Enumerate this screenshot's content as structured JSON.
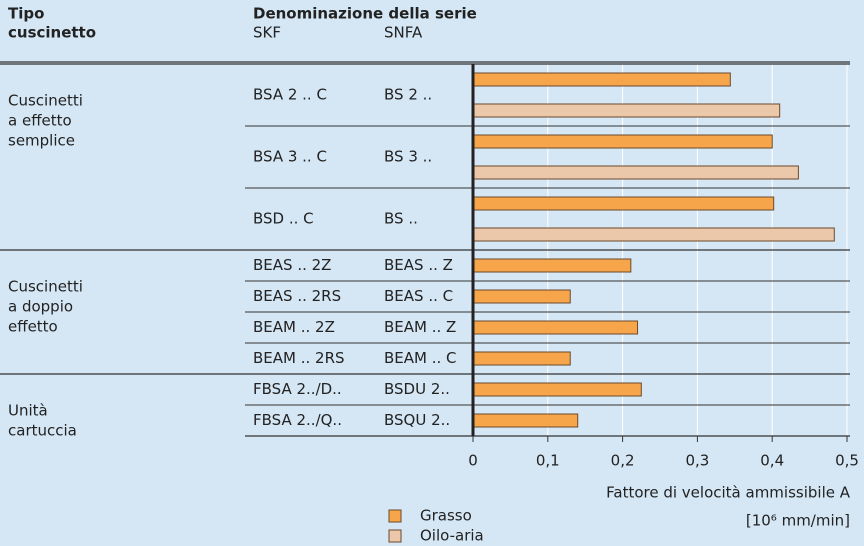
{
  "chart_data": {
    "type": "barh",
    "headers": {
      "type": [
        "Tipo",
        "cuscinetto"
      ],
      "series_name": "Denominazione della serie",
      "columns": [
        "SKF",
        "SNFA"
      ]
    },
    "group_labels": [
      [
        "Cuscinetti",
        "a effetto",
        "semplice"
      ],
      null,
      null,
      [
        "Cuscinetti",
        "a doppio",
        "effetto"
      ],
      null,
      null,
      null,
      [
        "Unità",
        "cartuccia"
      ],
      null
    ],
    "categories_skf": [
      "BSA 2 .. C",
      "BSA 3 .. C",
      "BSD .. C",
      "BEAS .. 2Z",
      "BEAS .. 2RS",
      "BEAM .. 2Z",
      "BEAM .. 2RS",
      "FBSA 2../D..",
      "FBSA 2../Q.."
    ],
    "categories_snfa": [
      "BS 2 ..",
      "BS 3 ..",
      "BS ..",
      "BEAS .. Z",
      "BEAS .. C",
      "BEAM .. Z",
      "BEAM .. C",
      "BSDU 2..",
      "BSQU 2.."
    ],
    "series": [
      {
        "name": "Grasso",
        "color": "#f7a54a",
        "values": [
          0.344,
          0.4,
          0.402,
          0.211,
          0.13,
          0.22,
          0.13,
          0.225,
          0.14
        ]
      },
      {
        "name": "Oilo-aria",
        "color": "#ecc8ab",
        "values": [
          0.41,
          0.435,
          0.483,
          null,
          null,
          null,
          null,
          null,
          null
        ]
      }
    ],
    "xlim": [
      0,
      0.5
    ],
    "xticks": [
      0,
      {
        "value": 0.1,
        "label": "0,1"
      },
      {
        "value": 0.2,
        "label": "0,2"
      },
      {
        "value": 0.3,
        "label": "0,3"
      },
      {
        "value": 0.4,
        "label": "0,4"
      },
      {
        "value": 0.5,
        "label": "0,5"
      }
    ],
    "xlabel": "Fattore di velocità ammissibile A",
    "xunit": "[10⁶ mm/min]",
    "grid": true
  }
}
